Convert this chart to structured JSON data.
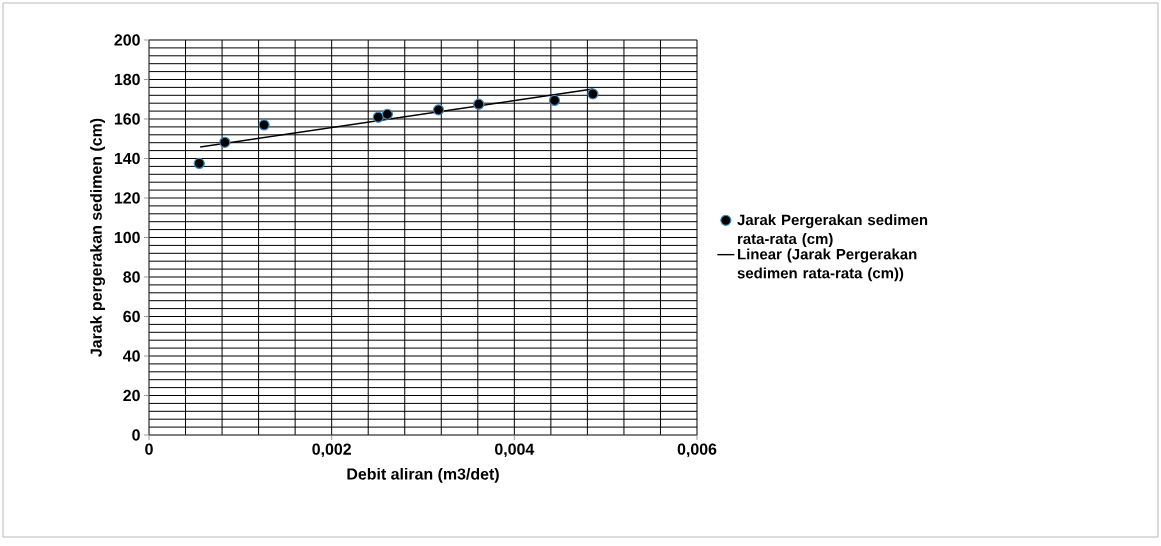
{
  "chart_data": {
    "type": "scatter",
    "xlabel": "Debit aliran (m3/det)",
    "ylabel": "Jarak pergerakan sedimen (cm)",
    "xlim": [
      0,
      0.006
    ],
    "ylim": [
      0,
      200
    ],
    "xticks": [
      0,
      {
        "value": 0.002,
        "label": "0,002"
      },
      {
        "value": 0.004,
        "label": "0,004"
      },
      {
        "value": 0.006,
        "label": "0,006"
      }
    ],
    "yticks": [
      0,
      20,
      40,
      60,
      80,
      100,
      120,
      140,
      160,
      180,
      200
    ],
    "grid": true,
    "legend": "right",
    "series": [
      {
        "name": "Jarak  Pergerakan sedimen rata-rata (cm)",
        "marker": "circle",
        "color": "#000000",
        "x": [
          0.00055,
          0.00083,
          0.00126,
          0.00251,
          0.00261,
          0.00317,
          0.00361,
          0.00444,
          0.00486
        ],
        "values": [
          137.5,
          148.2,
          157.0,
          160.9,
          162.4,
          164.6,
          167.5,
          169.4,
          172.7
        ]
      },
      {
        "name": "Linear (Jarak  Pergerakan sedimen rata-rata (cm))",
        "type": "line",
        "marker": "none",
        "line_style": "solid",
        "color": "#000000",
        "x": [
          0.00056,
          0.00486
        ],
        "values": [
          145.8,
          175.2
        ]
      }
    ]
  }
}
